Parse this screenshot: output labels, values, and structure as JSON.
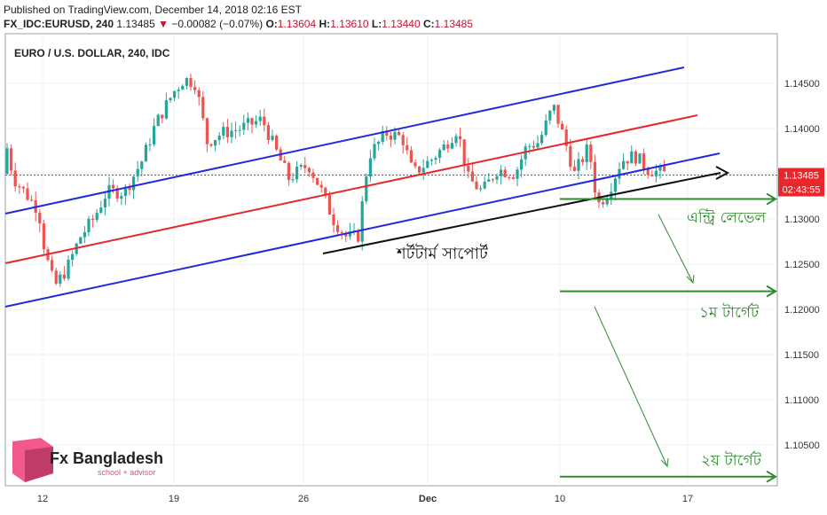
{
  "header": {
    "published": "Published on TradingView.com, December 14, 2018 02:16 EST",
    "symbol": "FX_IDC:EURUSD, 240",
    "last": "1.13485",
    "down_arrow": "▼",
    "change": "−0.00082 (−0.07%)",
    "open_label": "O:",
    "open": "1.13604",
    "high_label": "H:",
    "high": "1.13610",
    "low_label": "L:",
    "low": "1.13440",
    "close_label": "C:",
    "close": "1.13485"
  },
  "chart_data": {
    "type": "candlestick",
    "title": "EURO / U.S. DOLLAR, 240, IDC",
    "x_ticks": [
      "12",
      "19",
      "26",
      "Dec",
      "10",
      "17"
    ],
    "y_ticks": [
      "1.14500",
      "1.14000",
      "1.13500",
      "1.13000",
      "1.12500",
      "1.12000",
      "1.11500",
      "1.11000",
      "1.10500"
    ],
    "ylim": [
      1.101,
      1.1497
    ],
    "last_price_label": "1.13485",
    "countdown_label": "02:43:55",
    "annotations": {
      "support": "শর্টটার্ম সাপোর্ট",
      "entry": "এন্ট্রি লেভেল",
      "target1": "১ম টার্গেট",
      "target2": "২য় টার্গেট"
    },
    "channel_colors": {
      "upper": "#1f2bdc",
      "middle": "#e8262b",
      "lower": "#1f2bdc",
      "support": "#111111",
      "targets": "#2e8b2e"
    },
    "candle_colors": {
      "up": "#26a69a",
      "down": "#ef5350"
    },
    "levels": {
      "entry": 1.1322,
      "target1": 1.122,
      "target2": 1.1015,
      "current": 1.13485
    }
  },
  "brand": {
    "name": "Fx Bangladesh",
    "tagline": "school + advisor"
  }
}
